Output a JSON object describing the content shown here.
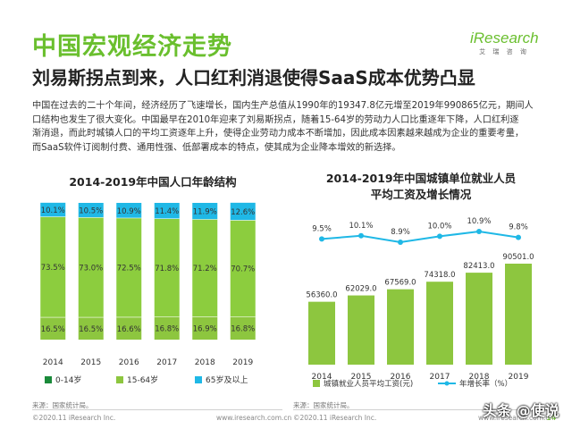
{
  "header": {
    "title": "中国宏观经济走势",
    "subtitle": "刘易斯拐点到来，人口红利消退使得SaaS成本优势凸显",
    "logo_word": "iResearch",
    "logo_sub": "艾 瑞 咨 询"
  },
  "paragraph": [
    "中国在过去的二十个年间，经济经历了飞速增长，国内生产总值从1990年的19347.8亿元增至2019年990865亿元，期间人",
    "口结构也发生了很大变化。中国最早在2010年迎来了刘易斯拐点，随着15-64岁的劳动力人口比重逐年下降，人口红利逐",
    "渐消退，而此时城镇人口的平均工资逐年上升，使得企业劳动力成本不断增加，因此成本因素越来越成为企业的重要考量，",
    "而SaaS软件订阅制付费、通用性强、低部署成本的特点，使其成为企业降本增效的新选择。"
  ],
  "chart_data": [
    {
      "type": "bar",
      "stacked": true,
      "percent_stacked": true,
      "title": "2014-2019年中国人口年龄结构",
      "categories": [
        "2014",
        "2015",
        "2016",
        "2017",
        "2018",
        "2019"
      ],
      "series": [
        {
          "name": "0-14岁",
          "color": "#8dc63f",
          "values": [
            16.5,
            16.5,
            16.6,
            16.8,
            16.9,
            16.8
          ],
          "labels": [
            "16.5%",
            "16.5%",
            "16.6%",
            "16.8%",
            "16.9%",
            "16.8%"
          ]
        },
        {
          "name": "15-64岁",
          "color": "#8dc63f",
          "values": [
            73.5,
            73.0,
            72.5,
            71.8,
            71.2,
            70.7
          ],
          "labels": [
            "73.5%",
            "73.0%",
            "72.5%",
            "71.8%",
            "71.2%",
            "70.7%"
          ]
        },
        {
          "name": "65岁及以上",
          "color": "#1fb8e6",
          "values": [
            10.1,
            10.5,
            10.9,
            11.4,
            11.9,
            12.6
          ],
          "labels": [
            "10.1%",
            "10.5%",
            "10.9%",
            "11.4%",
            "11.9%",
            "12.6%"
          ]
        }
      ],
      "legend_colors": [
        "#1a8a3a",
        "#8dc63f",
        "#1fb8e6"
      ],
      "ylim": [
        0,
        100
      ],
      "source": "来源：国家统计局。"
    },
    {
      "type": "bar+line",
      "title_lines": [
        "2014-2019年中国城镇单位就业人员",
        "平均工资及增长情况"
      ],
      "categories": [
        "2014",
        "2015",
        "2016",
        "2017",
        "2018",
        "2019"
      ],
      "bars": {
        "name": "城镇就业人员平均工资(元)",
        "color": "#8dc63f",
        "values": [
          56360.0,
          62029.0,
          67569.0,
          74318.0,
          82413.0,
          90501.0
        ],
        "labels": [
          "56360.0",
          "62029.0",
          "67569.0",
          "74318.0",
          "82413.0",
          "90501.0"
        ]
      },
      "line": {
        "name": "年增长率（%）",
        "color": "#1fb8e6",
        "values": [
          9.5,
          10.1,
          8.9,
          10.0,
          10.9,
          9.8
        ],
        "labels": [
          "9.5%",
          "10.1%",
          "8.9%",
          "10.0%",
          "10.9%",
          "9.8%"
        ]
      },
      "source": "来源：国家统计局。"
    }
  ],
  "footer": {
    "left_copyright": "©2020.11 iResearch Inc.",
    "left_url": "www.iresearch.com.cn",
    "right_copyright": "©2020.11 iResearch Inc.",
    "right_url": "www.iresearch.com.cn",
    "page": "14",
    "watermark": "头条 @使说"
  }
}
